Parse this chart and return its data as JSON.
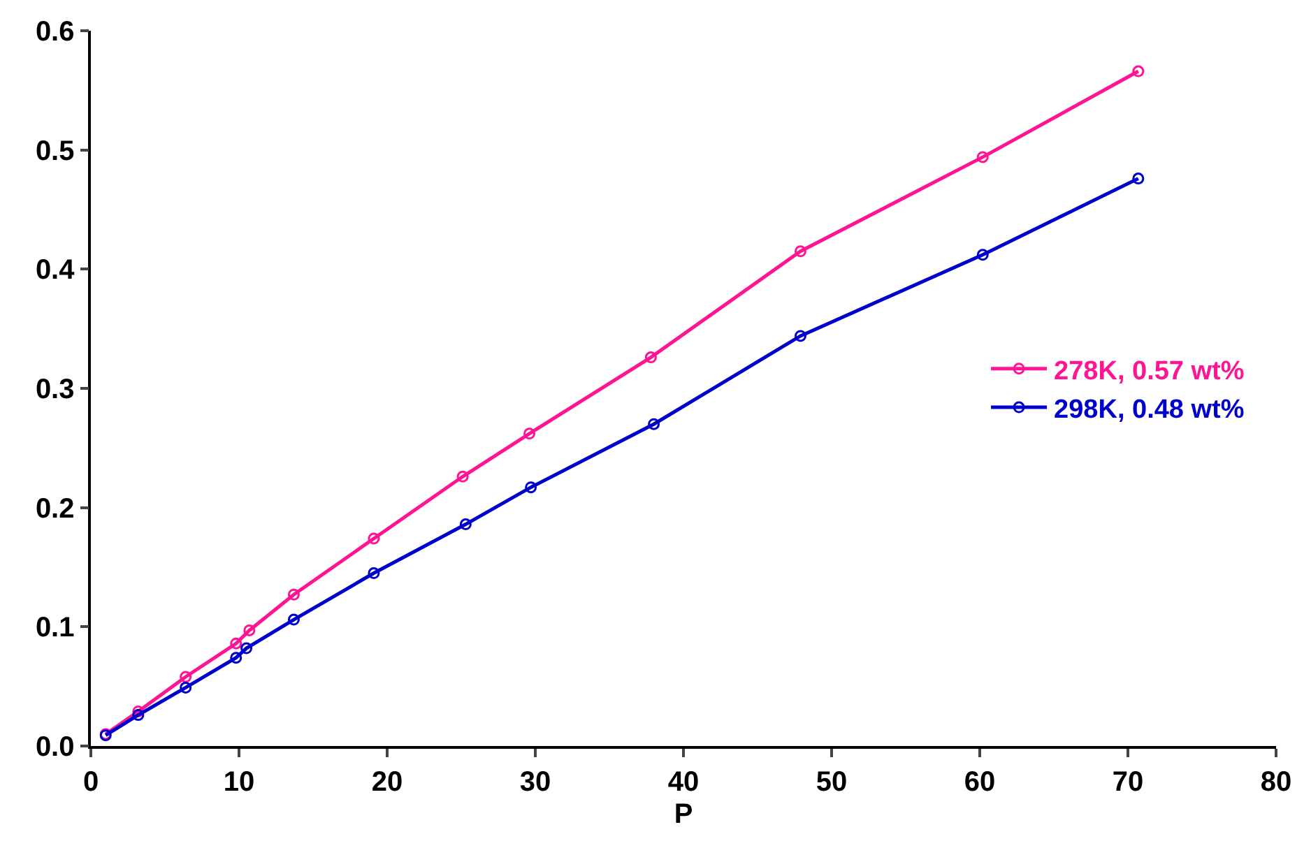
{
  "chart_data": {
    "type": "line",
    "xlabel": "P",
    "marker": "circle",
    "legend": "right",
    "xlim": [
      0,
      80
    ],
    "xticks": [
      0,
      10,
      20,
      30,
      40,
      50,
      60,
      70,
      80
    ],
    "ylim": [
      0,
      0.6
    ],
    "yticks": [
      {
        "value": 0,
        "label": "0.0"
      },
      {
        "value": 0.1,
        "label": "0.1"
      },
      {
        "value": 0.2,
        "label": "0.2"
      },
      {
        "value": 0.3,
        "label": "0.3"
      },
      {
        "value": 0.4,
        "label": "0.4"
      },
      {
        "value": 0.5,
        "label": "0.5"
      },
      {
        "value": 0.6,
        "label": "0.6"
      }
    ],
    "series": [
      {
        "name": "278K, 0.57 wt%",
        "color": "#ff1493",
        "x": [
          1.0,
          3.2,
          6.4,
          9.8,
          10.7,
          13.7,
          19.1,
          25.1,
          29.6,
          37.8,
          47.9,
          60.2,
          70.7
        ],
        "values": [
          0.01,
          0.029,
          0.058,
          0.086,
          0.097,
          0.127,
          0.174,
          0.226,
          0.262,
          0.326,
          0.415,
          0.494,
          0.566
        ]
      },
      {
        "name": "298K, 0.48 wt%",
        "color": "#0000cc",
        "x": [
          1.0,
          3.2,
          6.4,
          9.8,
          10.5,
          13.7,
          19.1,
          25.3,
          29.7,
          38.0,
          47.9,
          60.2,
          70.7
        ],
        "values": [
          0.009,
          0.026,
          0.049,
          0.074,
          0.082,
          0.106,
          0.145,
          0.186,
          0.217,
          0.27,
          0.344,
          0.412,
          0.476
        ]
      }
    ]
  }
}
